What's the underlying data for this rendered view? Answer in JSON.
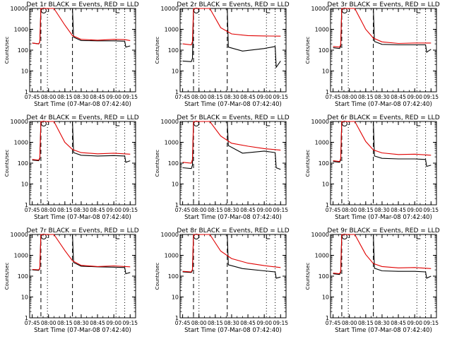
{
  "chart_data": [
    {
      "type": "line",
      "title": "Det 1r  BLACK = Events, RED = LLD",
      "xlabel": "Start Time (07-Mar-08 07:42:40)",
      "ylabel": "Counts/sec",
      "ylim": [
        1,
        10000
      ],
      "yscale": "log",
      "xticks": [
        "07:45",
        "08:00",
        "08:15",
        "08:30",
        "08:45",
        "09:00",
        "09:15"
      ],
      "yticks": [
        "1",
        "10",
        "100",
        "1000",
        "10000"
      ],
      "markers": {
        "dashed": [
          "07:53",
          "08:22"
        ],
        "dotted": [
          "07:59",
          "09:02",
          "09:10"
        ]
      },
      "series": [
        {
          "name": "BLACK = Events",
          "color": "#000000",
          "x": [
            "07:45",
            "07:51",
            "07:52",
            "07:53",
            "07:55",
            "08:22",
            "08:23",
            "08:30",
            "08:45",
            "09:00",
            "09:10",
            "09:11",
            "09:15"
          ],
          "y": [
            220,
            200,
            250,
            10000,
            10000,
            10000,
            420,
            290,
            280,
            280,
            270,
            140,
            160
          ]
        },
        {
          "name": "RED = LLD",
          "color": "#e00000",
          "x": [
            "07:45",
            "07:51",
            "07:52",
            "07:53",
            "07:55",
            "08:05",
            "08:15",
            "08:22",
            "08:30",
            "08:45",
            "09:00",
            "09:10",
            "09:15"
          ],
          "y": [
            220,
            200,
            250,
            10000,
            10000,
            10000,
            1600,
            500,
            330,
            300,
            330,
            320,
            290
          ]
        }
      ]
    },
    {
      "type": "line",
      "title": "Det 2r  BLACK = Events, RED = LLD",
      "xlabel": "Start Time (07-Mar-08 07:42:40)",
      "ylabel": "Counts/sec",
      "ylim": [
        1,
        10000
      ],
      "yscale": "log",
      "xticks": [
        "07:45",
        "08:00",
        "08:15",
        "08:30",
        "08:45",
        "09:00",
        "09:15"
      ],
      "yticks": [
        "1",
        "10",
        "100",
        "1000",
        "10000"
      ],
      "markers": {
        "dashed": [
          "07:55",
          "08:26"
        ],
        "dotted": [
          "08:00",
          "09:02",
          "09:10"
        ]
      },
      "series": [
        {
          "name": "BLACK = Events",
          "color": "#000000",
          "x": [
            "07:45",
            "07:53",
            "07:54",
            "07:55",
            "07:57",
            "08:26",
            "08:27",
            "08:40",
            "09:00",
            "09:10",
            "09:11",
            "09:15"
          ],
          "y": [
            30,
            28,
            40,
            10000,
            10000,
            10000,
            140,
            90,
            120,
            150,
            15,
            30
          ]
        },
        {
          "name": "RED = LLD",
          "color": "#e00000",
          "x": [
            "07:45",
            "07:53",
            "07:54",
            "07:55",
            "07:57",
            "08:10",
            "08:20",
            "08:30",
            "08:45",
            "09:00",
            "09:15"
          ],
          "y": [
            200,
            180,
            260,
            10000,
            10000,
            10000,
            1200,
            600,
            500,
            480,
            470
          ]
        }
      ]
    },
    {
      "type": "line",
      "title": "Det 3r  BLACK = Events, RED = LLD",
      "xlabel": "Start Time (07-Mar-08 07:42:40)",
      "ylabel": "Counts/sec",
      "ylim": [
        1,
        10000
      ],
      "yscale": "log",
      "xticks": [
        "07:45",
        "08:00",
        "08:15",
        "08:30",
        "08:45",
        "09:00",
        "09:15"
      ],
      "yticks": [
        "1",
        "10",
        "100",
        "1000",
        "10000"
      ],
      "markers": {
        "dashed": [
          "07:53",
          "08:22"
        ],
        "dotted": [
          "07:59",
          "09:02",
          "09:10"
        ]
      },
      "series": [
        {
          "name": "BLACK = Events",
          "color": "#000000",
          "x": [
            "07:45",
            "07:51",
            "07:52",
            "07:53",
            "07:55",
            "08:22",
            "08:23",
            "08:30",
            "08:45",
            "09:00",
            "09:10",
            "09:11",
            "09:15"
          ],
          "y": [
            130,
            120,
            150,
            10000,
            10000,
            10000,
            260,
            190,
            180,
            180,
            180,
            80,
            110
          ]
        },
        {
          "name": "RED = LLD",
          "color": "#e00000",
          "x": [
            "07:45",
            "07:51",
            "07:52",
            "07:53",
            "07:55",
            "08:05",
            "08:15",
            "08:22",
            "08:30",
            "08:45",
            "09:00",
            "09:15"
          ],
          "y": [
            150,
            140,
            180,
            10000,
            10000,
            10000,
            1000,
            380,
            250,
            210,
            220,
            220
          ]
        }
      ]
    },
    {
      "type": "line",
      "title": "Det 4r  BLACK = Events, RED = LLD",
      "xlabel": "Start Time (07-Mar-08 07:42:40)",
      "ylabel": "Counts/sec",
      "ylim": [
        1,
        10000
      ],
      "yscale": "log",
      "xticks": [
        "07:45",
        "08:00",
        "08:15",
        "08:30",
        "08:45",
        "09:00",
        "09:15"
      ],
      "yticks": [
        "1",
        "10",
        "100",
        "1000",
        "10000"
      ],
      "markers": {
        "dashed": [
          "07:53",
          "08:22"
        ],
        "dotted": [
          "07:59",
          "09:02",
          "09:10"
        ]
      },
      "series": [
        {
          "name": "BLACK = Events",
          "color": "#000000",
          "x": [
            "07:45",
            "07:51",
            "07:52",
            "07:53",
            "07:55",
            "08:22",
            "08:23",
            "08:30",
            "08:45",
            "09:00",
            "09:10",
            "09:11",
            "09:15"
          ],
          "y": [
            140,
            130,
            160,
            10000,
            10000,
            10000,
            320,
            240,
            220,
            230,
            220,
            110,
            130
          ]
        },
        {
          "name": "RED = LLD",
          "color": "#e00000",
          "x": [
            "07:45",
            "07:51",
            "07:52",
            "07:53",
            "07:55",
            "08:05",
            "08:15",
            "08:22",
            "08:30",
            "08:45",
            "09:00",
            "09:15"
          ],
          "y": [
            150,
            140,
            180,
            10000,
            10000,
            10000,
            1000,
            450,
            320,
            280,
            300,
            270
          ]
        }
      ]
    },
    {
      "type": "line",
      "title": "Det 5r  BLACK = Events, RED = LLD",
      "xlabel": "Start Time (07-Mar-08 07:42:40)",
      "ylabel": "Counts/sec",
      "ylim": [
        1,
        10000
      ],
      "yscale": "log",
      "xticks": [
        "07:45",
        "08:00",
        "08:15",
        "08:30",
        "08:45",
        "09:00",
        "09:15"
      ],
      "yticks": [
        "1",
        "10",
        "100",
        "1000",
        "10000"
      ],
      "markers": {
        "dashed": [
          "07:55",
          "08:26"
        ],
        "dotted": [
          "08:00",
          "09:02",
          "09:10"
        ]
      },
      "series": [
        {
          "name": "BLACK = Events",
          "color": "#000000",
          "x": [
            "07:45",
            "07:53",
            "07:54",
            "07:55",
            "07:57",
            "08:26",
            "08:27",
            "08:40",
            "09:00",
            "09:10",
            "09:11",
            "09:15"
          ],
          "y": [
            60,
            55,
            80,
            10000,
            10000,
            10000,
            700,
            300,
            380,
            320,
            60,
            50
          ]
        },
        {
          "name": "RED = LLD",
          "color": "#e00000",
          "x": [
            "07:45",
            "07:53",
            "07:54",
            "07:55",
            "07:57",
            "08:10",
            "08:20",
            "08:30",
            "08:45",
            "09:00",
            "09:15"
          ],
          "y": [
            110,
            100,
            150,
            10000,
            10000,
            10000,
            2000,
            900,
            650,
            500,
            420
          ]
        }
      ]
    },
    {
      "type": "line",
      "title": "Det 6r  BLACK = Events, RED = LLD",
      "xlabel": "Start Time (07-Mar-08 07:42:40)",
      "ylabel": "Counts/sec",
      "ylim": [
        1,
        10000
      ],
      "yscale": "log",
      "xticks": [
        "07:45",
        "08:00",
        "08:15",
        "08:30",
        "08:45",
        "09:00",
        "09:15"
      ],
      "yticks": [
        "1",
        "10",
        "100",
        "1000",
        "10000"
      ],
      "markers": {
        "dashed": [
          "07:53",
          "08:22"
        ],
        "dotted": [
          "07:59",
          "09:02",
          "09:10"
        ]
      },
      "series": [
        {
          "name": "BLACK = Events",
          "color": "#000000",
          "x": [
            "07:45",
            "07:51",
            "07:52",
            "07:53",
            "07:55",
            "08:22",
            "08:23",
            "08:30",
            "08:45",
            "09:00",
            "09:10",
            "09:11",
            "09:15"
          ],
          "y": [
            120,
            110,
            140,
            10000,
            10000,
            10000,
            220,
            170,
            160,
            160,
            150,
            70,
            80
          ]
        },
        {
          "name": "RED = LLD",
          "color": "#e00000",
          "x": [
            "07:45",
            "07:51",
            "07:52",
            "07:53",
            "07:55",
            "08:05",
            "08:15",
            "08:22",
            "08:30",
            "08:45",
            "09:00",
            "09:15"
          ],
          "y": [
            130,
            120,
            160,
            10000,
            10000,
            10000,
            1100,
            430,
            310,
            260,
            270,
            240
          ]
        }
      ]
    },
    {
      "type": "line",
      "title": "Det 7r  BLACK = Events, RED = LLD",
      "xlabel": "Start Time (07-Mar-08 07:42:40)",
      "ylabel": "Counts/sec",
      "ylim": [
        1,
        10000
      ],
      "yscale": "log",
      "xticks": [
        "07:45",
        "08:00",
        "08:15",
        "08:30",
        "08:45",
        "09:00",
        "09:15"
      ],
      "yticks": [
        "1",
        "10",
        "100",
        "1000",
        "10000"
      ],
      "markers": {
        "dashed": [
          "07:53",
          "08:22"
        ],
        "dotted": [
          "07:59",
          "09:02",
          "09:10"
        ]
      },
      "series": [
        {
          "name": "BLACK = Events",
          "color": "#000000",
          "x": [
            "07:45",
            "07:51",
            "07:52",
            "07:53",
            "07:55",
            "08:22",
            "08:23",
            "08:30",
            "08:45",
            "09:00",
            "09:10",
            "09:11",
            "09:15"
          ],
          "y": [
            200,
            190,
            230,
            10000,
            10000,
            10000,
            450,
            300,
            280,
            270,
            260,
            130,
            150
          ]
        },
        {
          "name": "RED = LLD",
          "color": "#e00000",
          "x": [
            "07:45",
            "07:51",
            "07:52",
            "07:53",
            "07:55",
            "08:05",
            "08:15",
            "08:22",
            "08:30",
            "08:45",
            "09:00",
            "09:15"
          ],
          "y": [
            210,
            200,
            240,
            10000,
            10000,
            10000,
            1700,
            550,
            330,
            290,
            310,
            280
          ]
        }
      ]
    },
    {
      "type": "line",
      "title": "Det 8r  BLACK = Events, RED = LLD",
      "xlabel": "Start Time (07-Mar-08 07:42:40)",
      "ylabel": "Counts/sec",
      "ylim": [
        1,
        10000
      ],
      "yscale": "log",
      "xticks": [
        "07:45",
        "08:00",
        "08:15",
        "08:30",
        "08:45",
        "09:00",
        "09:15"
      ],
      "yticks": [
        "1",
        "10",
        "100",
        "1000",
        "10000"
      ],
      "markers": {
        "dashed": [
          "07:55",
          "08:26"
        ],
        "dotted": [
          "08:00",
          "09:02",
          "09:10"
        ]
      },
      "series": [
        {
          "name": "BLACK = Events",
          "color": "#000000",
          "x": [
            "07:45",
            "07:53",
            "07:54",
            "07:55",
            "07:57",
            "08:26",
            "08:27",
            "08:40",
            "09:00",
            "09:10",
            "09:11",
            "09:15"
          ],
          "y": [
            160,
            150,
            190,
            10000,
            10000,
            10000,
            350,
            230,
            180,
            160,
            80,
            90
          ]
        },
        {
          "name": "RED = LLD",
          "color": "#e00000",
          "x": [
            "07:45",
            "07:53",
            "07:54",
            "07:55",
            "07:57",
            "08:10",
            "08:20",
            "08:30",
            "08:45",
            "09:00",
            "09:15"
          ],
          "y": [
            170,
            160,
            210,
            10000,
            10000,
            10000,
            1600,
            700,
            420,
            320,
            260
          ]
        }
      ]
    },
    {
      "type": "line",
      "title": "Det 9r  BLACK = Events, RED = LLD",
      "xlabel": "Start Time (07-Mar-08 07:42:40)",
      "ylabel": "Counts/sec",
      "ylim": [
        1,
        10000
      ],
      "yscale": "log",
      "xticks": [
        "07:45",
        "08:00",
        "08:15",
        "08:30",
        "08:45",
        "09:00",
        "09:15"
      ],
      "yticks": [
        "1",
        "10",
        "100",
        "1000",
        "10000"
      ],
      "markers": {
        "dashed": [
          "07:53",
          "08:22"
        ],
        "dotted": [
          "07:59",
          "09:02",
          "09:10"
        ]
      },
      "series": [
        {
          "name": "BLACK = Events",
          "color": "#000000",
          "x": [
            "07:45",
            "07:51",
            "07:52",
            "07:53",
            "07:55",
            "08:22",
            "08:23",
            "08:30",
            "08:45",
            "09:00",
            "09:10",
            "09:11",
            "09:15"
          ],
          "y": [
            130,
            120,
            150,
            10000,
            10000,
            10000,
            240,
            180,
            170,
            170,
            160,
            80,
            100
          ]
        },
        {
          "name": "RED = LLD",
          "color": "#e00000",
          "x": [
            "07:45",
            "07:51",
            "07:52",
            "07:53",
            "07:55",
            "08:05",
            "08:15",
            "08:22",
            "08:30",
            "08:45",
            "09:00",
            "09:15"
          ],
          "y": [
            140,
            130,
            170,
            10000,
            10000,
            10000,
            1100,
            400,
            290,
            250,
            260,
            230
          ]
        }
      ]
    }
  ]
}
